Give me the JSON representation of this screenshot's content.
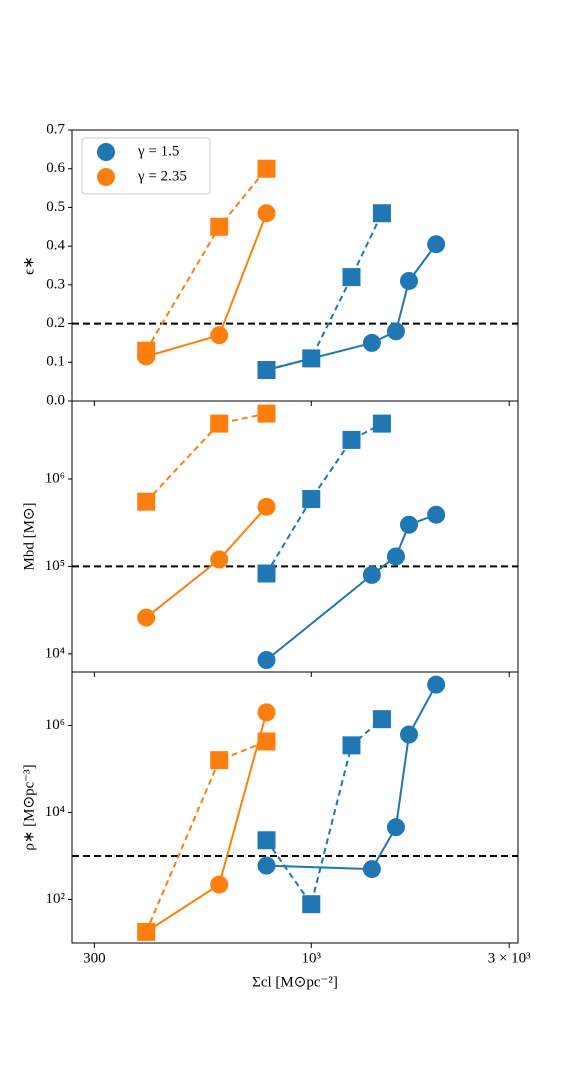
{
  "chart_data": [
    {
      "type": "line",
      "ylabel": "ϵ∗",
      "log_y": false,
      "xlim": [
        265,
        3150
      ],
      "ylim": [
        0,
        0.7
      ],
      "yticks": [
        {
          "value": 0,
          "label": "0.0"
        },
        0.1,
        0.2,
        0.3,
        0.4,
        0.5,
        0.6,
        0.7
      ],
      "hline": 0.2,
      "legend": [
        {
          "name": "γ = 1.5",
          "color": "#1f77b4"
        },
        {
          "name": "γ = 2.35",
          "color": "#ff7f0e"
        }
      ],
      "series": [
        {
          "color": "#ff7f0e",
          "marker": "circle",
          "linestyle": "solid",
          "x": [
            400,
            600,
            780
          ],
          "values": [
            0.115,
            0.17,
            0.485
          ]
        },
        {
          "color": "#ff7f0e",
          "marker": "square",
          "linestyle": "dashed",
          "x": [
            400,
            600,
            780
          ],
          "values": [
            0.13,
            0.45,
            0.6
          ]
        },
        {
          "color": "#1f77b4",
          "marker": "circle",
          "linestyle": "solid",
          "x": [
            780,
            1400,
            1600,
            1720,
            2000
          ],
          "values": [
            0.08,
            0.15,
            0.18,
            0.31,
            0.405
          ]
        },
        {
          "color": "#1f77b4",
          "marker": "square",
          "linestyle": "dashed",
          "x": [
            780,
            1000,
            1250,
            1480
          ],
          "values": [
            0.08,
            0.11,
            0.32,
            0.485
          ]
        }
      ]
    },
    {
      "type": "line",
      "ylabel": "Mbd [M⊙]",
      "log_y": true,
      "xlim": [
        265,
        3150
      ],
      "ylim": [
        6200,
        7800000
      ],
      "yticks": [
        {
          "value": 10000,
          "label": "10⁴"
        },
        {
          "value": 100000,
          "label": "10⁵"
        },
        {
          "value": 1000000,
          "label": "10⁶"
        }
      ],
      "hline": 100000,
      "series": [
        {
          "color": "#ff7f0e",
          "marker": "circle",
          "linestyle": "solid",
          "x": [
            400,
            600,
            780
          ],
          "values": [
            26000,
            120000,
            480000
          ]
        },
        {
          "color": "#ff7f0e",
          "marker": "square",
          "linestyle": "dashed",
          "x": [
            400,
            600,
            780
          ],
          "values": [
            550000,
            4300000,
            5600000
          ]
        },
        {
          "color": "#1f77b4",
          "marker": "circle",
          "linestyle": "solid",
          "x": [
            780,
            1400,
            1600,
            1720,
            2000
          ],
          "values": [
            8500,
            80000,
            130000,
            300000,
            390000
          ]
        },
        {
          "color": "#1f77b4",
          "marker": "square",
          "linestyle": "dashed",
          "x": [
            780,
            1000,
            1250,
            1480
          ],
          "values": [
            83000,
            590000,
            2800000,
            4300000
          ]
        }
      ]
    },
    {
      "type": "line",
      "ylabel": "ρ∗ [M⊙pc⁻³]",
      "log_y": true,
      "xlabel": "Σcl [M⊙pc⁻²]",
      "xlim": [
        265,
        3150
      ],
      "ylim": [
        10,
        17000000
      ],
      "xticks": [
        300,
        {
          "value": 1000,
          "label": "10³"
        },
        {
          "value": 3000,
          "label": "3 × 10³"
        }
      ],
      "yticks": [
        {
          "value": 100,
          "label": "10²"
        },
        {
          "value": 10000,
          "label": "10⁴"
        },
        {
          "value": 1000000,
          "label": "10⁶"
        }
      ],
      "hline": 1000,
      "series": [
        {
          "color": "#ff7f0e",
          "marker": "circle",
          "linestyle": "solid",
          "x": [
            400,
            600,
            780
          ],
          "values": [
            18,
            220,
            2000000
          ]
        },
        {
          "color": "#ff7f0e",
          "marker": "square",
          "linestyle": "dashed",
          "x": [
            400,
            600,
            780
          ],
          "values": [
            18,
            160000,
            430000
          ]
        },
        {
          "color": "#1f77b4",
          "marker": "circle",
          "linestyle": "solid",
          "x": [
            780,
            1400,
            1600,
            1720,
            2000
          ],
          "values": [
            600,
            500,
            4600,
            620000,
            8700000
          ]
        },
        {
          "color": "#1f77b4",
          "marker": "square",
          "linestyle": "dashed",
          "x": [
            780,
            1000,
            1250,
            1480
          ],
          "values": [
            2300,
            78,
            350000,
            1400000
          ]
        }
      ]
    }
  ]
}
